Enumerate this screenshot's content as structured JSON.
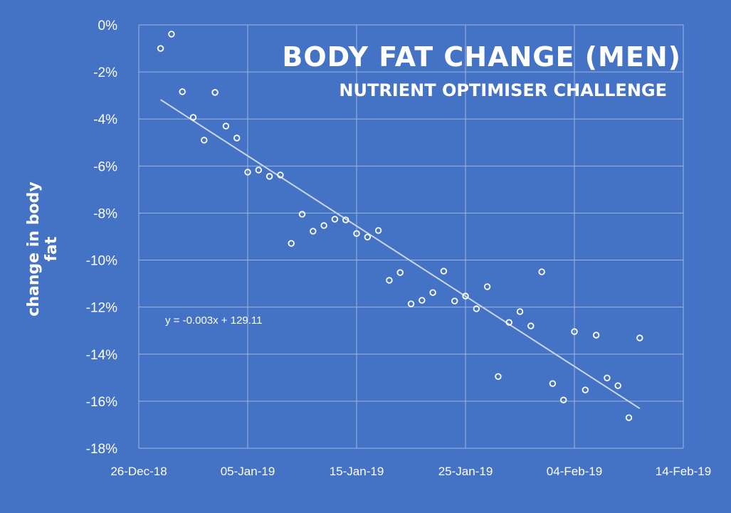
{
  "chart_data": {
    "type": "scatter",
    "title": "BODY FAT CHANGE (MEN)",
    "subtitle": "NUTRIENT OPTIMISER CHALLENGE",
    "xlabel": "",
    "ylabel": "change in body fat",
    "xlim": [
      "2018-12-26",
      "2019-02-14"
    ],
    "ylim": [
      -18,
      0
    ],
    "x_ticks": [
      "26-Dec-18",
      "05-Jan-19",
      "15-Jan-19",
      "25-Jan-19",
      "04-Feb-19",
      "14-Feb-19"
    ],
    "y_ticks": [
      "0%",
      "-2%",
      "-4%",
      "-6%",
      "-8%",
      "-10%",
      "-12%",
      "-14%",
      "-16%",
      "-18%"
    ],
    "grid": true,
    "x_start": "2018-12-28",
    "x_step_days": 1,
    "values": [
      -1.0,
      -0.39,
      -2.84,
      -3.93,
      -4.9,
      -2.87,
      -4.3,
      -4.81,
      -6.26,
      -6.17,
      -6.44,
      -6.38,
      -9.29,
      -8.05,
      -8.77,
      -8.53,
      -8.26,
      -8.29,
      -8.87,
      -9.02,
      -8.74,
      -10.86,
      -10.53,
      -11.86,
      -11.71,
      -11.38,
      -10.47,
      -11.74,
      -11.53,
      -12.07,
      -11.13,
      -14.95,
      -12.65,
      -12.19,
      -12.8,
      -10.5,
      -15.25,
      -15.95,
      -13.04,
      -15.52,
      -13.19,
      -15.01,
      -15.34,
      -16.7,
      -13.31
    ],
    "trendline": {
      "equation": "y = -0.003x + 129.11",
      "start_value": -3.18,
      "end_value": -16.31
    },
    "colors": {
      "background": "#4472C4",
      "marker": "#ffffff",
      "trend": "#c9d6ee"
    }
  }
}
